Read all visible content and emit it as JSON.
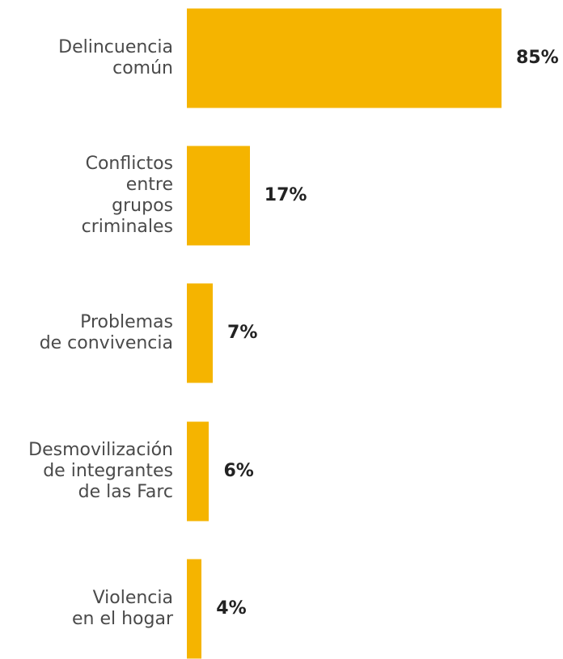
{
  "chart_data": {
    "type": "bar",
    "orientation": "horizontal",
    "categories": [
      "Delincuencia\ncomún",
      "Conflictos\nentre\ngrupos\ncriminales",
      "Problemas\nde convivencia",
      "Desmovilización\nde integrantes\nde las Farc",
      "Violencia\nen el hogar"
    ],
    "values": [
      85,
      17,
      7,
      6,
      4
    ],
    "value_labels": [
      "85%",
      "17%",
      "7%",
      "6%",
      "4%"
    ],
    "unit": "%",
    "xlim": [
      0,
      100
    ],
    "grid": false,
    "legend": "none",
    "bar_color": "#F5B400"
  }
}
